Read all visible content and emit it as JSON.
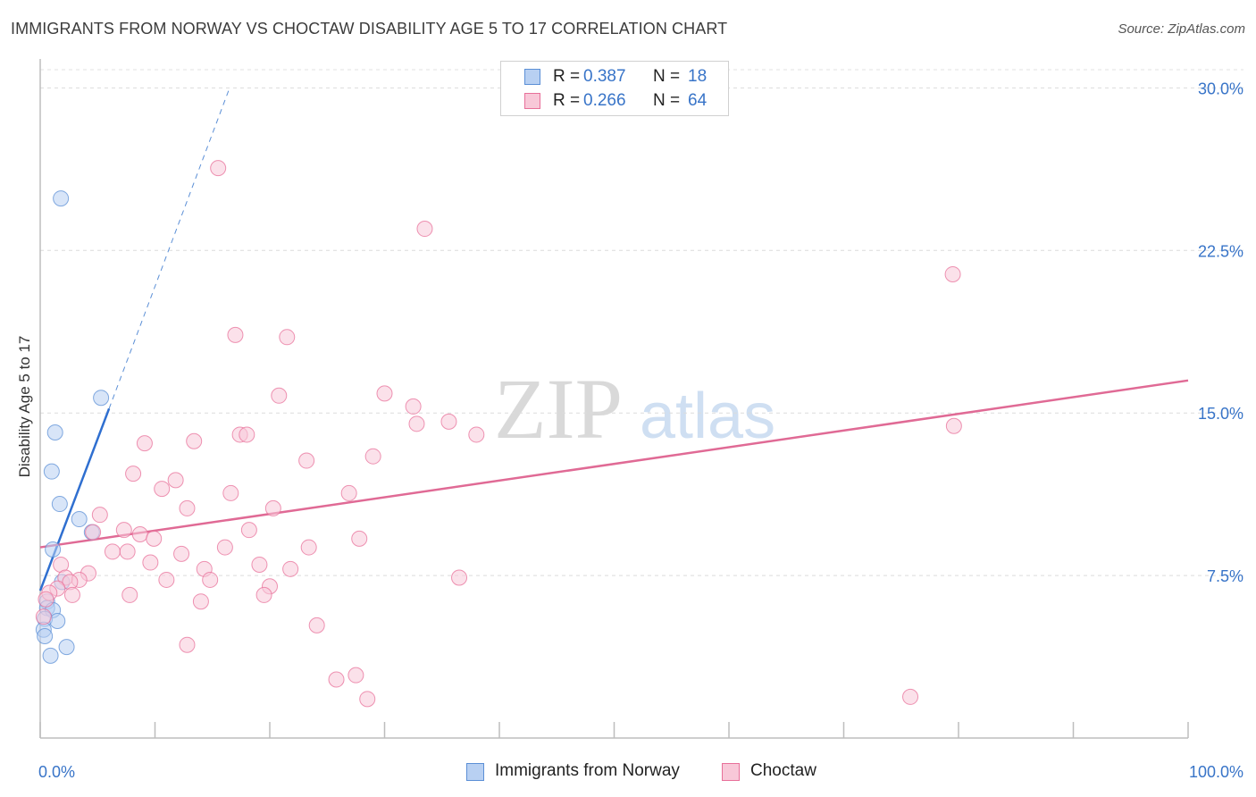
{
  "title": "IMMIGRANTS FROM NORWAY VS CHOCTAW DISABILITY AGE 5 TO 17 CORRELATION CHART",
  "source": "Source: ZipAtlas.com",
  "watermark": {
    "zip": "ZIP",
    "atlas": "atlas"
  },
  "legend_top": {
    "rows": [
      {
        "r_key": "R =",
        "r_value": "0.387",
        "n_key": "N =",
        "n_value": "18"
      },
      {
        "r_key": "R =",
        "r_value": "0.266",
        "n_key": "N =",
        "n_value": "64"
      }
    ]
  },
  "chart_data": {
    "type": "scatter",
    "title": "IMMIGRANTS FROM NORWAY VS CHOCTAW DISABILITY AGE 5 TO 17 CORRELATION CHART",
    "xlabel": "",
    "ylabel": "Disability Age 5 to 17",
    "xlim": [
      0,
      100
    ],
    "ylim": [
      0,
      31.5
    ],
    "x_tick_labels": [
      "0.0%",
      "100.0%"
    ],
    "y_ticks": [
      7.5,
      15.0,
      22.5,
      30.0
    ],
    "y_tick_labels": [
      "7.5%",
      "15.0%",
      "22.5%",
      "30.0%"
    ],
    "grid": "horizontal dashed",
    "legend_position": "bottom",
    "series": [
      {
        "name": "Immigrants from Norway",
        "color": "#5b8fd6",
        "fill": "#b8d0f2",
        "R": 0.387,
        "N": 18,
        "trend": {
          "x0": 0,
          "y0": 6.8,
          "x1": 6.0,
          "y1": 15.2,
          "dash_to_x": 16.5,
          "dash_to_y": 30.0
        },
        "points": [
          [
            1.8,
            24.9
          ],
          [
            5.3,
            15.7
          ],
          [
            1.3,
            14.1
          ],
          [
            1.0,
            12.3
          ],
          [
            1.7,
            10.8
          ],
          [
            3.4,
            10.1
          ],
          [
            4.5,
            9.5
          ],
          [
            1.1,
            8.7
          ],
          [
            1.9,
            7.2
          ],
          [
            0.6,
            6.3
          ],
          [
            0.6,
            6.0
          ],
          [
            1.1,
            5.9
          ],
          [
            0.4,
            5.5
          ],
          [
            1.5,
            5.4
          ],
          [
            0.3,
            5.0
          ],
          [
            0.4,
            4.7
          ],
          [
            2.3,
            4.2
          ],
          [
            0.9,
            3.8
          ]
        ]
      },
      {
        "name": "Choctaw",
        "color": "#e8709a",
        "fill": "#f8c8d8",
        "R": 0.266,
        "N": 64,
        "trend": {
          "x0": 0,
          "y0": 8.8,
          "x1": 100,
          "y1": 16.5
        },
        "points": [
          [
            15.5,
            26.3
          ],
          [
            33.5,
            23.5
          ],
          [
            79.5,
            21.4
          ],
          [
            17.0,
            18.6
          ],
          [
            21.5,
            18.5
          ],
          [
            30.0,
            15.9
          ],
          [
            20.8,
            15.8
          ],
          [
            32.5,
            15.3
          ],
          [
            32.8,
            14.5
          ],
          [
            35.6,
            14.6
          ],
          [
            79.6,
            14.4
          ],
          [
            38.0,
            14.0
          ],
          [
            17.4,
            14.0
          ],
          [
            18.0,
            14.0
          ],
          [
            9.1,
            13.6
          ],
          [
            13.4,
            13.7
          ],
          [
            29.0,
            13.0
          ],
          [
            23.2,
            12.8
          ],
          [
            8.1,
            12.2
          ],
          [
            11.8,
            11.9
          ],
          [
            10.6,
            11.5
          ],
          [
            16.6,
            11.3
          ],
          [
            26.9,
            11.3
          ],
          [
            12.8,
            10.6
          ],
          [
            20.3,
            10.6
          ],
          [
            5.2,
            10.3
          ],
          [
            7.3,
            9.6
          ],
          [
            18.2,
            9.6
          ],
          [
            4.6,
            9.5
          ],
          [
            8.7,
            9.4
          ],
          [
            9.9,
            9.2
          ],
          [
            27.8,
            9.2
          ],
          [
            16.1,
            8.8
          ],
          [
            23.4,
            8.8
          ],
          [
            6.3,
            8.6
          ],
          [
            7.6,
            8.6
          ],
          [
            12.3,
            8.5
          ],
          [
            9.6,
            8.1
          ],
          [
            1.8,
            8.0
          ],
          [
            19.1,
            8.0
          ],
          [
            14.3,
            7.8
          ],
          [
            21.8,
            7.8
          ],
          [
            4.2,
            7.6
          ],
          [
            2.2,
            7.4
          ],
          [
            3.4,
            7.3
          ],
          [
            36.5,
            7.4
          ],
          [
            11.0,
            7.3
          ],
          [
            14.8,
            7.3
          ],
          [
            2.6,
            7.2
          ],
          [
            20.0,
            7.0
          ],
          [
            1.5,
            6.9
          ],
          [
            0.8,
            6.7
          ],
          [
            2.8,
            6.6
          ],
          [
            7.8,
            6.6
          ],
          [
            19.5,
            6.6
          ],
          [
            14.0,
            6.3
          ],
          [
            0.5,
            6.4
          ],
          [
            24.1,
            5.2
          ],
          [
            12.8,
            4.3
          ],
          [
            25.8,
            2.7
          ],
          [
            27.5,
            2.9
          ],
          [
            28.5,
            1.8
          ],
          [
            75.8,
            1.9
          ],
          [
            0.3,
            5.6
          ]
        ]
      }
    ]
  }
}
